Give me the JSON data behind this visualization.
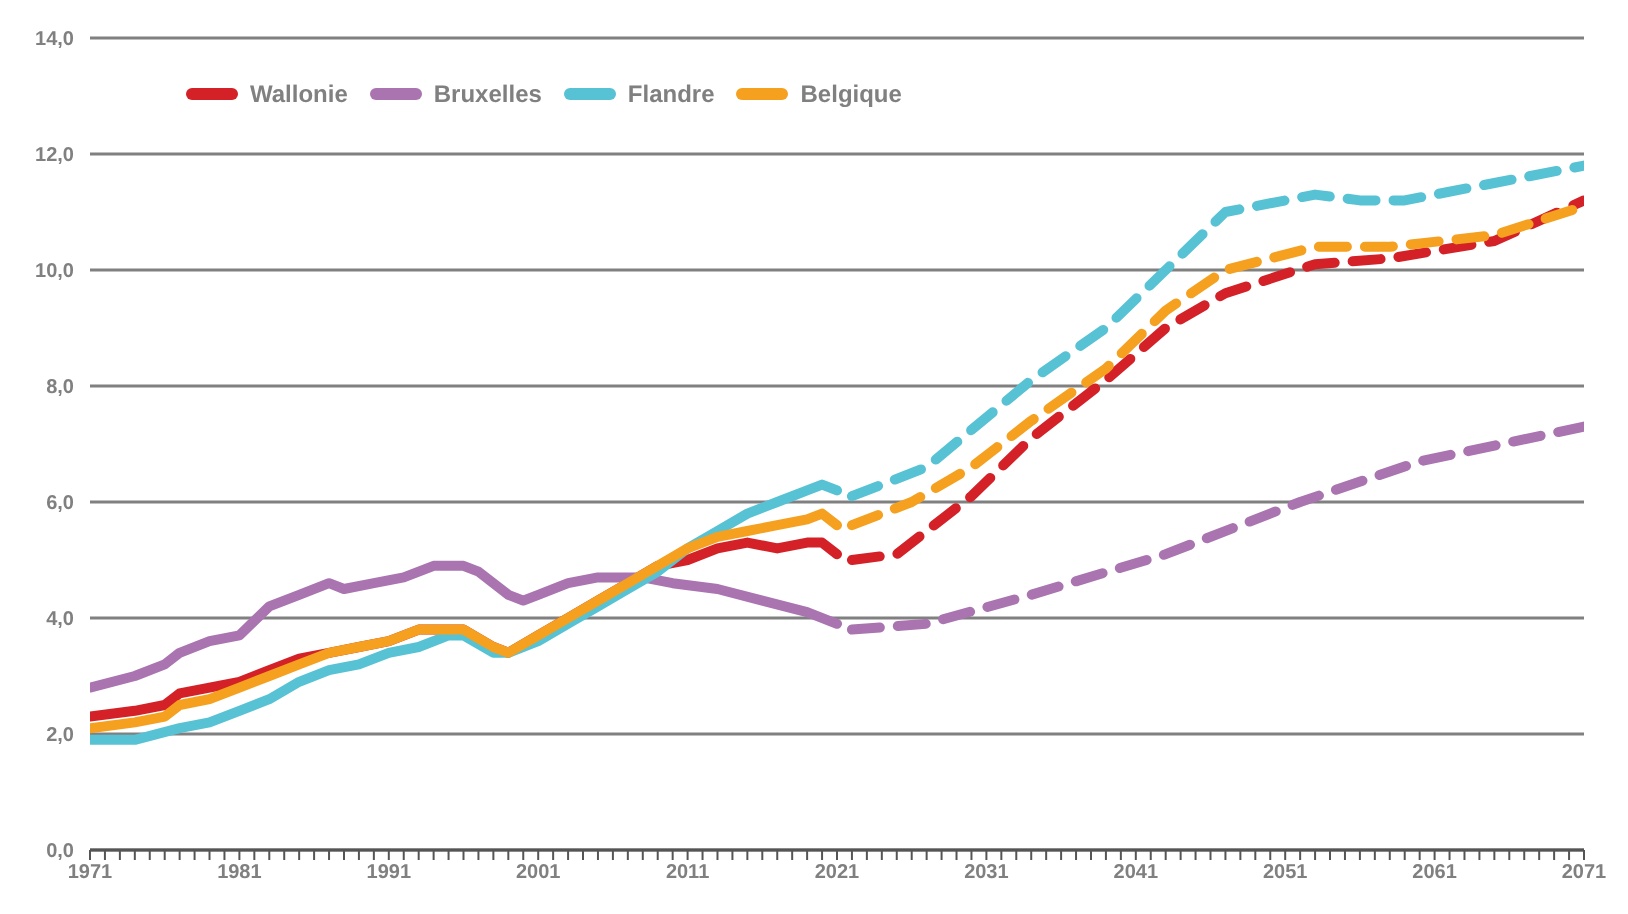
{
  "chart_data": {
    "type": "line",
    "xlim": [
      1971,
      2071
    ],
    "xticks": [
      1971,
      {
        "value": 1972,
        "label": null
      },
      {
        "value": 1973,
        "label": null
      },
      {
        "value": 1974,
        "label": null
      },
      {
        "value": 1975,
        "label": null
      },
      {
        "value": 1976,
        "label": null
      },
      {
        "value": 1977,
        "label": null
      },
      {
        "value": 1978,
        "label": null
      },
      {
        "value": 1979,
        "label": null
      },
      {
        "value": 1980,
        "label": null
      },
      1981,
      {
        "value": 1982,
        "label": null
      },
      {
        "value": 1983,
        "label": null
      },
      {
        "value": 1984,
        "label": null
      },
      {
        "value": 1985,
        "label": null
      },
      {
        "value": 1986,
        "label": null
      },
      {
        "value": 1987,
        "label": null
      },
      {
        "value": 1988,
        "label": null
      },
      {
        "value": 1989,
        "label": null
      },
      {
        "value": 1990,
        "label": null
      },
      1991,
      {
        "value": 1992,
        "label": null
      },
      {
        "value": 1993,
        "label": null
      },
      {
        "value": 1994,
        "label": null
      },
      {
        "value": 1995,
        "label": null
      },
      {
        "value": 1996,
        "label": null
      },
      {
        "value": 1997,
        "label": null
      },
      {
        "value": 1998,
        "label": null
      },
      {
        "value": 1999,
        "label": null
      },
      {
        "value": 2000,
        "label": null
      },
      2001,
      {
        "value": 2002,
        "label": null
      },
      {
        "value": 2003,
        "label": null
      },
      {
        "value": 2004,
        "label": null
      },
      {
        "value": 2005,
        "label": null
      },
      {
        "value": 2006,
        "label": null
      },
      {
        "value": 2007,
        "label": null
      },
      {
        "value": 2008,
        "label": null
      },
      {
        "value": 2009,
        "label": null
      },
      {
        "value": 2010,
        "label": null
      },
      2011,
      {
        "value": 2012,
        "label": null
      },
      {
        "value": 2013,
        "label": null
      },
      {
        "value": 2014,
        "label": null
      },
      {
        "value": 2015,
        "label": null
      },
      {
        "value": 2016,
        "label": null
      },
      {
        "value": 2017,
        "label": null
      },
      {
        "value": 2018,
        "label": null
      },
      {
        "value": 2019,
        "label": null
      },
      {
        "value": 2020,
        "label": null
      },
      2021,
      {
        "value": 2022,
        "label": null
      },
      {
        "value": 2023,
        "label": null
      },
      {
        "value": 2024,
        "label": null
      },
      {
        "value": 2025,
        "label": null
      },
      {
        "value": 2026,
        "label": null
      },
      {
        "value": 2027,
        "label": null
      },
      {
        "value": 2028,
        "label": null
      },
      {
        "value": 2029,
        "label": null
      },
      {
        "value": 2030,
        "label": null
      },
      2031,
      {
        "value": 2032,
        "label": null
      },
      {
        "value": 2033,
        "label": null
      },
      {
        "value": 2034,
        "label": null
      },
      {
        "value": 2035,
        "label": null
      },
      {
        "value": 2036,
        "label": null
      },
      {
        "value": 2037,
        "label": null
      },
      {
        "value": 2038,
        "label": null
      },
      {
        "value": 2039,
        "label": null
      },
      {
        "value": 2040,
        "label": null
      },
      2041,
      {
        "value": 2042,
        "label": null
      },
      {
        "value": 2043,
        "label": null
      },
      {
        "value": 2044,
        "label": null
      },
      {
        "value": 2045,
        "label": null
      },
      {
        "value": 2046,
        "label": null
      },
      {
        "value": 2047,
        "label": null
      },
      {
        "value": 2048,
        "label": null
      },
      {
        "value": 2049,
        "label": null
      },
      {
        "value": 2050,
        "label": null
      },
      2051,
      {
        "value": 2052,
        "label": null
      },
      {
        "value": 2053,
        "label": null
      },
      {
        "value": 2054,
        "label": null
      },
      {
        "value": 2055,
        "label": null
      },
      {
        "value": 2056,
        "label": null
      },
      {
        "value": 2057,
        "label": null
      },
      {
        "value": 2058,
        "label": null
      },
      {
        "value": 2059,
        "label": null
      },
      {
        "value": 2060,
        "label": null
      },
      2061,
      {
        "value": 2062,
        "label": null
      },
      {
        "value": 2063,
        "label": null
      },
      {
        "value": 2064,
        "label": null
      },
      {
        "value": 2065,
        "label": null
      },
      {
        "value": 2066,
        "label": null
      },
      {
        "value": 2067,
        "label": null
      },
      {
        "value": 2068,
        "label": null
      },
      {
        "value": 2069,
        "label": null
      },
      {
        "value": 2070,
        "label": null
      },
      2071
    ],
    "ylim": [
      0,
      14
    ],
    "yticks": [
      {
        "value": 0,
        "label": "0,0"
      },
      {
        "value": 2,
        "label": "2,0"
      },
      {
        "value": 4,
        "label": "4,0"
      },
      {
        "value": 6,
        "label": "6,0"
      },
      {
        "value": 8,
        "label": "8,0"
      },
      {
        "value": 10,
        "label": "10,0"
      },
      {
        "value": 12,
        "label": "12,0"
      },
      {
        "value": 14,
        "label": "14,0"
      }
    ],
    "grid": "y",
    "legend": "top left",
    "marker": "none",
    "series": [
      {
        "name": "Wallonie",
        "color": "#d42027",
        "line_style": "solid",
        "x": [
          1971,
          1974,
          1976,
          1977,
          1979,
          1981,
          1983,
          1985,
          1987,
          1989,
          1991,
          1993,
          1995,
          1996,
          1998,
          1999,
          2001,
          2003,
          2005,
          2007,
          2009,
          2011,
          2013,
          2015,
          2017,
          2019,
          2020,
          2021
        ],
        "values": [
          2.3,
          2.4,
          2.5,
          2.7,
          2.8,
          2.9,
          3.1,
          3.3,
          3.4,
          3.5,
          3.6,
          3.8,
          3.8,
          3.8,
          3.5,
          3.4,
          3.7,
          4.0,
          4.3,
          4.6,
          4.9,
          5.0,
          5.2,
          5.3,
          5.2,
          5.3,
          5.3,
          5.1
        ]
      },
      {
        "name": "Bruxelles",
        "color": "#a974b0",
        "line_style": "solid",
        "x": [
          1971,
          1974,
          1976,
          1977,
          1979,
          1981,
          1983,
          1985,
          1987,
          1988,
          1990,
          1992,
          1994,
          1996,
          1997,
          1999,
          2000,
          2001,
          2003,
          2005,
          2008,
          2010,
          2013,
          2016,
          2019,
          2021
        ],
        "values": [
          2.8,
          3.0,
          3.2,
          3.4,
          3.6,
          3.7,
          4.2,
          4.4,
          4.6,
          4.5,
          4.6,
          4.7,
          4.9,
          4.9,
          4.8,
          4.4,
          4.3,
          4.4,
          4.6,
          4.7,
          4.7,
          4.6,
          4.5,
          4.3,
          4.1,
          3.9
        ]
      },
      {
        "name": "Flandre",
        "color": "#57c2d4",
        "line_style": "solid",
        "x": [
          1971,
          1974,
          1977,
          1979,
          1981,
          1983,
          1985,
          1987,
          1989,
          1991,
          1993,
          1995,
          1996,
          1998,
          1999,
          2001,
          2003,
          2005,
          2007,
          2009,
          2011,
          2013,
          2015,
          2017,
          2019,
          2020,
          2021
        ],
        "values": [
          1.9,
          1.9,
          2.1,
          2.2,
          2.4,
          2.6,
          2.9,
          3.1,
          3.2,
          3.4,
          3.5,
          3.7,
          3.7,
          3.4,
          3.4,
          3.6,
          3.9,
          4.2,
          4.5,
          4.8,
          5.2,
          5.5,
          5.8,
          6.0,
          6.2,
          6.3,
          6.2
        ]
      },
      {
        "name": "Belgique",
        "color": "#f5a01e",
        "line_style": "solid",
        "x": [
          1971,
          1974,
          1976,
          1977,
          1979,
          1981,
          1983,
          1985,
          1987,
          1989,
          1991,
          1993,
          1995,
          1996,
          1998,
          1999,
          2001,
          2003,
          2005,
          2007,
          2009,
          2011,
          2013,
          2015,
          2017,
          2019,
          2020,
          2021
        ],
        "values": [
          2.1,
          2.2,
          2.3,
          2.5,
          2.6,
          2.8,
          3.0,
          3.2,
          3.4,
          3.5,
          3.6,
          3.8,
          3.8,
          3.8,
          3.5,
          3.4,
          3.7,
          4.0,
          4.3,
          4.6,
          4.9,
          5.2,
          5.4,
          5.5,
          5.6,
          5.7,
          5.8,
          5.6
        ]
      },
      {
        "color": "#d42027",
        "line_style": "dashed",
        "x": [
          2022,
          2025,
          2030,
          2034,
          2039,
          2043,
          2047,
          2053,
          2058,
          2065,
          2071
        ],
        "values": [
          5.0,
          5.1,
          6.1,
          7.1,
          8.1,
          9.0,
          9.6,
          10.1,
          10.2,
          10.5,
          11.2
        ]
      },
      {
        "color": "#a974b0",
        "line_style": "dashed",
        "x": [
          2022,
          2027,
          2034,
          2043,
          2052,
          2060,
          2071
        ],
        "values": [
          3.8,
          3.9,
          4.4,
          5.1,
          6.0,
          6.7,
          7.3
        ]
      },
      {
        "color": "#57c2d4",
        "line_style": "dashed",
        "x": [
          2022,
          2027,
          2034,
          2039,
          2043,
          2047,
          2053,
          2056,
          2059,
          2065,
          2071
        ],
        "values": [
          6.1,
          6.6,
          8.1,
          9.0,
          10.0,
          11.0,
          11.3,
          11.2,
          11.2,
          11.5,
          11.8
        ]
      },
      {
        "color": "#f5a01e",
        "line_style": "dashed",
        "x": [
          2022,
          2026,
          2030,
          2034,
          2039,
          2043,
          2047,
          2053,
          2058,
          2065,
          2071
        ],
        "values": [
          5.6,
          6.0,
          6.6,
          7.4,
          8.3,
          9.3,
          10.0,
          10.4,
          10.4,
          10.6,
          11.1
        ]
      }
    ]
  }
}
